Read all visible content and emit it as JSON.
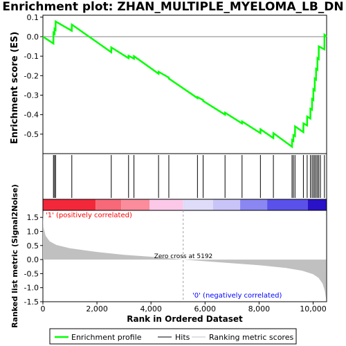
{
  "title": "Enrichment plot: ZHAN_MULTIPLE_MYELOMA_LB_DN",
  "ylabel_top": "Enrichment score (ES)",
  "ylabel_bottom": "Ranked list metric (Signal2Noise)",
  "xlabel": "Rank in Ordered Dataset",
  "zero_cross_label": "Zero cross at 5192",
  "positive_label": "'1' (positively correlated)",
  "negative_label": "'0' (negatively correlated)",
  "legend": {
    "enrichment": "Enrichment profile",
    "hits": "Hits",
    "ranking": "Ranking metric scores"
  },
  "colors": {
    "enrichment_line": "#00ff00",
    "positive_text": "#ff0000",
    "negative_text": "#0000ff",
    "metric_fill": "#c0c0c0"
  },
  "chart_data": {
    "type": "line",
    "x_range": [
      0,
      10500
    ],
    "es_ylim": [
      -0.6,
      0.11
    ],
    "metric_ylim": [
      -1.5,
      1.75
    ],
    "x_ticks": [
      0,
      2000,
      4000,
      6000,
      8000,
      10000
    ],
    "x_tick_labels": [
      "0",
      "2,000",
      "4,000",
      "6,000",
      "8,000",
      "10,000"
    ],
    "es_ticks": [
      0.1,
      0.0,
      -0.1,
      -0.2,
      -0.3,
      -0.4,
      -0.5
    ],
    "es_tick_labels": [
      "0.1",
      "0.0",
      "-0.1",
      "-0.2",
      "-0.3",
      "-0.4",
      "-0.5"
    ],
    "metric_ticks": [
      1.5,
      1.0,
      0.5,
      0.0,
      -0.5,
      -1.0,
      -1.5
    ],
    "metric_tick_labels": [
      "1.5",
      "1.0",
      "0.5",
      "0.0",
      "-0.5",
      "-1.0",
      "-1.5"
    ],
    "zero_cross": 5192,
    "hits": [
      390,
      430,
      470,
      1070,
      2530,
      3170,
      3370,
      4280,
      4660,
      5720,
      5930,
      6740,
      7370,
      8050,
      8530,
      9220,
      9270,
      9330,
      9640,
      9780,
      9900,
      9960,
      10010,
      10060,
      10110,
      10160,
      10210,
      10270,
      10420
    ],
    "es_profile": [
      [
        0,
        0.0
      ],
      [
        389,
        -0.035
      ],
      [
        391,
        0.02
      ],
      [
        429,
        0.015
      ],
      [
        431,
        0.04
      ],
      [
        469,
        0.035
      ],
      [
        471,
        0.078
      ],
      [
        1069,
        0.03
      ],
      [
        1071,
        0.062
      ],
      [
        2529,
        -0.08
      ],
      [
        2531,
        -0.055
      ],
      [
        3169,
        -0.11
      ],
      [
        3171,
        -0.098
      ],
      [
        3369,
        -0.113
      ],
      [
        3371,
        -0.1
      ],
      [
        4279,
        -0.19
      ],
      [
        4281,
        -0.18
      ],
      [
        4659,
        -0.21
      ],
      [
        4661,
        -0.215
      ],
      [
        5719,
        -0.315
      ],
      [
        5721,
        -0.31
      ],
      [
        5929,
        -0.325
      ],
      [
        5931,
        -0.33
      ],
      [
        6739,
        -0.4
      ],
      [
        6741,
        -0.39
      ],
      [
        7369,
        -0.445
      ],
      [
        7371,
        -0.435
      ],
      [
        8049,
        -0.495
      ],
      [
        8051,
        -0.475
      ],
      [
        8529,
        -0.52
      ],
      [
        8531,
        -0.495
      ],
      [
        9219,
        -0.565
      ],
      [
        9221,
        -0.53
      ],
      [
        9269,
        -0.535
      ],
      [
        9271,
        -0.505
      ],
      [
        9329,
        -0.51
      ],
      [
        9331,
        -0.46
      ],
      [
        9639,
        -0.49
      ],
      [
        9641,
        -0.445
      ],
      [
        9779,
        -0.455
      ],
      [
        9781,
        -0.41
      ],
      [
        9899,
        -0.42
      ],
      [
        9901,
        -0.37
      ],
      [
        9959,
        -0.375
      ],
      [
        9961,
        -0.32
      ],
      [
        10009,
        -0.325
      ],
      [
        10011,
        -0.27
      ],
      [
        10059,
        -0.275
      ],
      [
        10061,
        -0.215
      ],
      [
        10109,
        -0.22
      ],
      [
        10111,
        -0.165
      ],
      [
        10159,
        -0.17
      ],
      [
        10161,
        -0.11
      ],
      [
        10209,
        -0.115
      ],
      [
        10211,
        -0.05
      ],
      [
        10419,
        -0.065
      ],
      [
        10421,
        0.01
      ],
      [
        10500,
        0.0
      ]
    ],
    "metric_profile": [
      [
        0,
        1.7
      ],
      [
        20,
        1.15
      ],
      [
        100,
        0.85
      ],
      [
        250,
        0.65
      ],
      [
        500,
        0.52
      ],
      [
        1000,
        0.4
      ],
      [
        2000,
        0.27
      ],
      [
        3000,
        0.17
      ],
      [
        4000,
        0.1
      ],
      [
        5192,
        0.0
      ],
      [
        6000,
        -0.06
      ],
      [
        7000,
        -0.13
      ],
      [
        8000,
        -0.2
      ],
      [
        9000,
        -0.3
      ],
      [
        9600,
        -0.4
      ],
      [
        10000,
        -0.52
      ],
      [
        10200,
        -0.65
      ],
      [
        10350,
        -0.85
      ],
      [
        10430,
        -1.1
      ],
      [
        10480,
        -1.4
      ]
    ],
    "color_bar": [
      {
        "from": 0,
        "to": 1950,
        "color": "#f2283a"
      },
      {
        "from": 1950,
        "to": 2900,
        "color": "#f76878"
      },
      {
        "from": 2900,
        "to": 3950,
        "color": "#fa8c9c"
      },
      {
        "from": 3950,
        "to": 5192,
        "color": "#fbc8e8"
      },
      {
        "from": 5192,
        "to": 6300,
        "color": "#dedcf8"
      },
      {
        "from": 6300,
        "to": 7300,
        "color": "#c8c4f8"
      },
      {
        "from": 7300,
        "to": 8300,
        "color": "#8a86f2"
      },
      {
        "from": 8300,
        "to": 9800,
        "color": "#5a50ea"
      },
      {
        "from": 9800,
        "to": 10500,
        "color": "#2a12c8"
      }
    ]
  }
}
